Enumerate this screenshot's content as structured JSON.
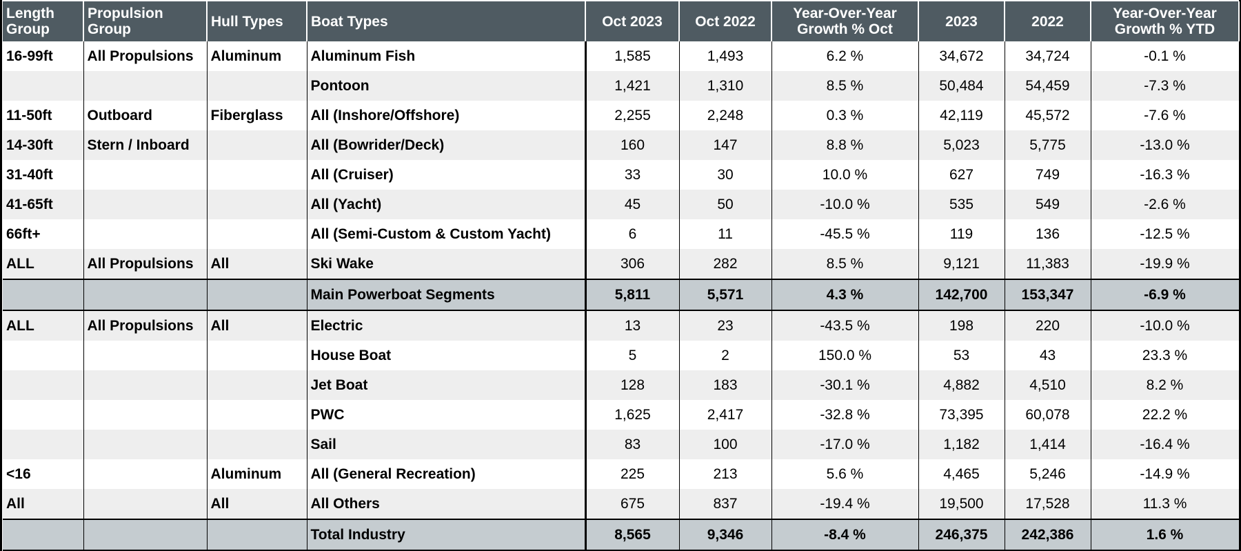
{
  "chart_data": {
    "type": "table",
    "columns": [
      "Length Group",
      "Propulsion Group",
      "Hull Types",
      "Boat Types",
      "Oct 2023",
      "Oct 2022",
      "Year-Over-Year Growth % Oct",
      "2023",
      "2022",
      "Year-Over-Year Growth % YTD"
    ],
    "rows": [
      {
        "length": "16-99ft",
        "propulsion": "All Propulsions",
        "hull": "Aluminum",
        "boat": "Aluminum Fish",
        "oct2023": "1,585",
        "oct2022": "1,493",
        "yoy_oct": "6.2 %",
        "ytd2023": "34,672",
        "ytd2022": "34,724",
        "yoy_ytd": "-0.1 %"
      },
      {
        "length": "",
        "propulsion": "",
        "hull": "",
        "boat": "Pontoon",
        "oct2023": "1,421",
        "oct2022": "1,310",
        "yoy_oct": "8.5 %",
        "ytd2023": "50,484",
        "ytd2022": "54,459",
        "yoy_ytd": "-7.3 %"
      },
      {
        "length": "11-50ft",
        "propulsion": "Outboard",
        "hull": "Fiberglass",
        "boat": "All (Inshore/Offshore)",
        "oct2023": "2,255",
        "oct2022": "2,248",
        "yoy_oct": "0.3 %",
        "ytd2023": "42,119",
        "ytd2022": "45,572",
        "yoy_ytd": "-7.6 %"
      },
      {
        "length": "14-30ft",
        "propulsion": "Stern / Inboard",
        "hull": "",
        "boat": "All (Bowrider/Deck)",
        "oct2023": "160",
        "oct2022": "147",
        "yoy_oct": "8.8 %",
        "ytd2023": "5,023",
        "ytd2022": "5,775",
        "yoy_ytd": "-13.0 %"
      },
      {
        "length": "31-40ft",
        "propulsion": "",
        "hull": "",
        "boat": "All (Cruiser)",
        "oct2023": "33",
        "oct2022": "30",
        "yoy_oct": "10.0 %",
        "ytd2023": "627",
        "ytd2022": "749",
        "yoy_ytd": "-16.3 %"
      },
      {
        "length": "41-65ft",
        "propulsion": "",
        "hull": "",
        "boat": "All (Yacht)",
        "oct2023": "45",
        "oct2022": "50",
        "yoy_oct": "-10.0 %",
        "ytd2023": "535",
        "ytd2022": "549",
        "yoy_ytd": "-2.6 %"
      },
      {
        "length": "66ft+",
        "propulsion": "",
        "hull": "",
        "boat": "All (Semi-Custom & Custom Yacht)",
        "oct2023": "6",
        "oct2022": "11",
        "yoy_oct": "-45.5 %",
        "ytd2023": "119",
        "ytd2022": "136",
        "yoy_ytd": "-12.5 %"
      },
      {
        "length": "ALL",
        "propulsion": "All Propulsions",
        "hull": "All",
        "boat": "Ski Wake",
        "oct2023": "306",
        "oct2022": "282",
        "yoy_oct": "8.5 %",
        "ytd2023": "9,121",
        "ytd2022": "11,383",
        "yoy_ytd": "-19.9 %"
      },
      {
        "length": "",
        "propulsion": "",
        "hull": "",
        "boat": "Main Powerboat Segments",
        "oct2023": "5,811",
        "oct2022": "5,571",
        "yoy_oct": "4.3 %",
        "ytd2023": "142,700",
        "ytd2022": "153,347",
        "yoy_ytd": "-6.9 %",
        "subtotal": true
      },
      {
        "length": "ALL",
        "propulsion": "All Propulsions",
        "hull": "All",
        "boat": "Electric",
        "oct2023": "13",
        "oct2022": "23",
        "yoy_oct": "-43.5 %",
        "ytd2023": "198",
        "ytd2022": "220",
        "yoy_ytd": "-10.0 %"
      },
      {
        "length": "",
        "propulsion": "",
        "hull": "",
        "boat": "House Boat",
        "oct2023": "5",
        "oct2022": "2",
        "yoy_oct": "150.0 %",
        "ytd2023": "53",
        "ytd2022": "43",
        "yoy_ytd": "23.3 %"
      },
      {
        "length": "",
        "propulsion": "",
        "hull": "",
        "boat": "Jet Boat",
        "oct2023": "128",
        "oct2022": "183",
        "yoy_oct": "-30.1 %",
        "ytd2023": "4,882",
        "ytd2022": "4,510",
        "yoy_ytd": "8.2 %"
      },
      {
        "length": "",
        "propulsion": "",
        "hull": "",
        "boat": "PWC",
        "oct2023": "1,625",
        "oct2022": "2,417",
        "yoy_oct": "-32.8 %",
        "ytd2023": "73,395",
        "ytd2022": "60,078",
        "yoy_ytd": "22.2 %"
      },
      {
        "length": "",
        "propulsion": "",
        "hull": "",
        "boat": "Sail",
        "oct2023": "83",
        "oct2022": "100",
        "yoy_oct": "-17.0 %",
        "ytd2023": "1,182",
        "ytd2022": "1,414",
        "yoy_ytd": "-16.4 %"
      },
      {
        "length": "<16",
        "propulsion": "",
        "hull": "Aluminum",
        "boat": "All (General Recreation)",
        "oct2023": "225",
        "oct2022": "213",
        "yoy_oct": "5.6 %",
        "ytd2023": "4,465",
        "ytd2022": "5,246",
        "yoy_ytd": "-14.9 %"
      },
      {
        "length": "All",
        "propulsion": "",
        "hull": "All",
        "boat": "All Others",
        "oct2023": "675",
        "oct2022": "837",
        "yoy_oct": "-19.4 %",
        "ytd2023": "19,500",
        "ytd2022": "17,528",
        "yoy_ytd": "11.3 %"
      },
      {
        "length": "",
        "propulsion": "",
        "hull": "",
        "boat": "Total Industry",
        "oct2023": "8,565",
        "oct2022": "9,346",
        "yoy_oct": "-8.4 %",
        "ytd2023": "246,375",
        "ytd2022": "242,386",
        "yoy_ytd": "1.6 %",
        "subtotal": true
      }
    ]
  },
  "colors": {
    "header_bg": "#4f5b62",
    "header_text": "#ffffff",
    "row_alt_bg": "#eeeeee",
    "subtotal_bg": "#c5ccd0"
  }
}
